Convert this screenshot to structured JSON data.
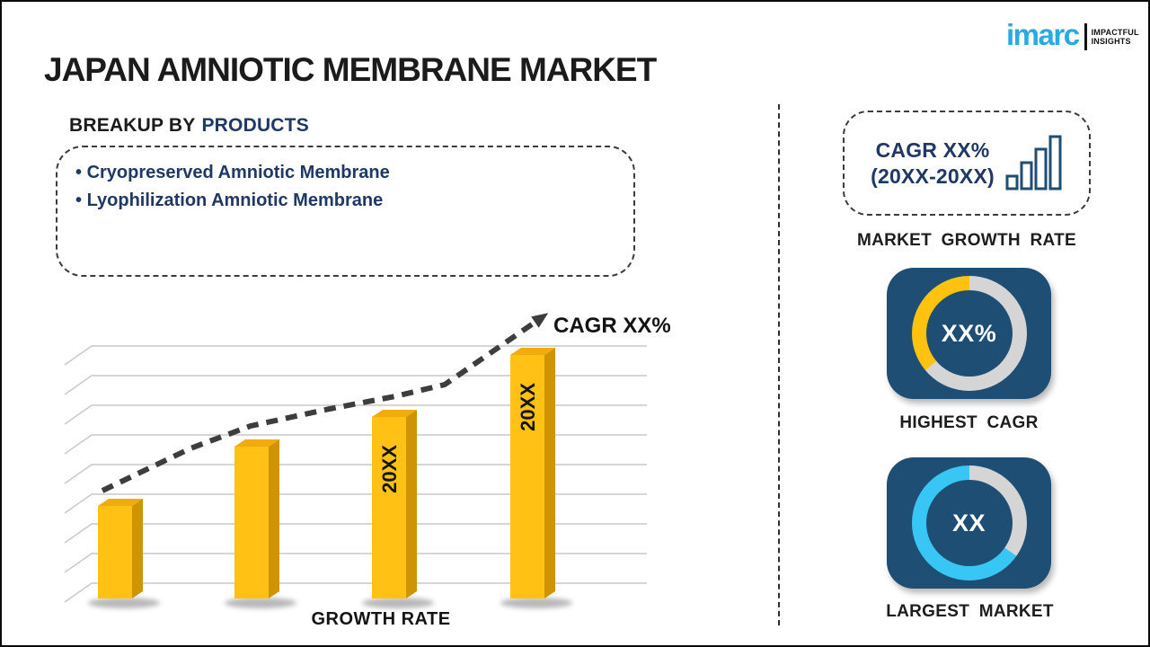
{
  "page": {
    "title": "JAPAN AMNIOTIC MEMBRANE MARKET"
  },
  "logo": {
    "brand": "imarc",
    "tagline_line1": "IMPACTFUL",
    "tagline_line2": "INSIGHTS"
  },
  "breakup": {
    "heading_prefix": "BREAKUP BY",
    "heading_highlight": "PRODUCTS",
    "items": [
      "Cryopreserved Amniotic Membrane",
      "Lyophilization Amniotic Membrane"
    ]
  },
  "chart_data": {
    "type": "bar",
    "title": "",
    "xlabel": "GROWTH RATE",
    "ylabel": "",
    "categories": [
      "",
      "",
      "20XX",
      "20XX"
    ],
    "bar_labels": [
      "",
      "",
      "20XX",
      "20XX"
    ],
    "values": [
      103,
      169,
      202,
      271
    ],
    "values_note": "y-axis unlabeled placeholder chart; values are relative bar heights read from pixels",
    "gridlines": 9,
    "legend": "none",
    "trend_label": "CAGR XX%",
    "trend_style": "dashed ascending arrow"
  },
  "sidebar": {
    "growth_box": {
      "line1": "CAGR XX%",
      "line2": "(20XX-20XX)"
    },
    "growth_caption": "MARKET GROWTH RATE",
    "highest_cagr": {
      "value": "XX%",
      "caption": "HIGHEST CAGR"
    },
    "largest_market": {
      "value": "XX",
      "caption": "LARGEST MARKET"
    }
  },
  "colors": {
    "brand-blue": "#29ABE2",
    "navy-text": "#1F3864",
    "tile-navy": "#1F4E74",
    "bar-yellow": "#FFC214",
    "bar-yellow-side": "#CE9404",
    "bar-yellow-top": "#F0AC0C",
    "accent-yellow": "#FFC20E",
    "accent-cyan": "#38C6F4",
    "ring-gray": "#D5D5D5",
    "grid-gray": "#C9C9C9",
    "arrow-dark": "#3D3D3D",
    "text-black": "#1B1B1B"
  }
}
